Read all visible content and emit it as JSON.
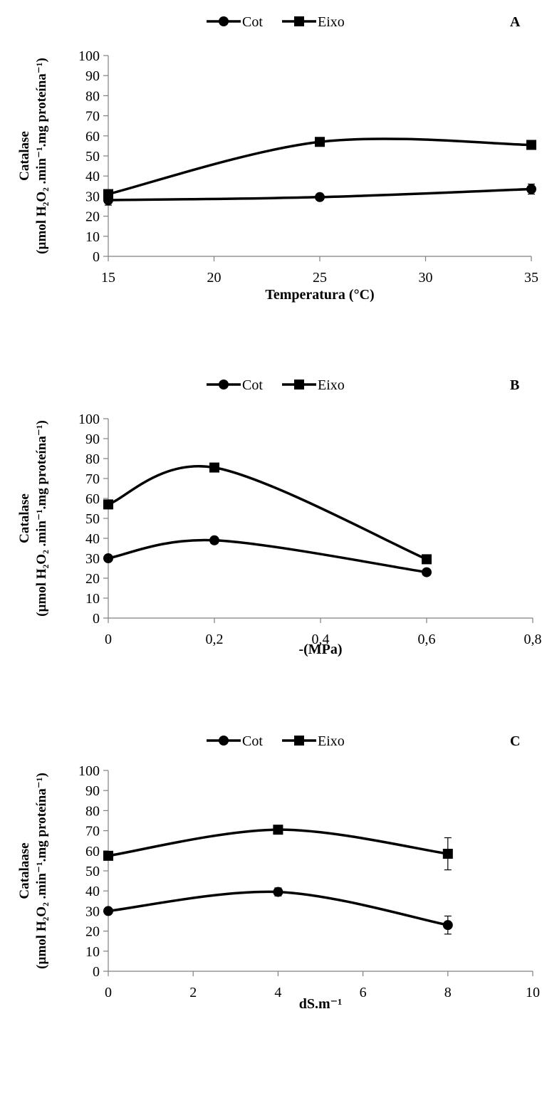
{
  "chart_data": [
    {
      "type": "line",
      "panel_label": "A",
      "xlabel": "Temperatura (°C)",
      "ylabel_line1": "Catalase",
      "ylabel_line2": "(µmol H₂O₂ .min⁻¹.mg proteína⁻¹)",
      "xlim": [
        15,
        35
      ],
      "xticks": [
        "15",
        "20",
        "25",
        "30",
        "35"
      ],
      "xtick_values": [
        15,
        20,
        25,
        30,
        35
      ],
      "ylim": [
        0,
        100
      ],
      "yticks": [
        0,
        10,
        20,
        30,
        40,
        50,
        60,
        70,
        80,
        90,
        100
      ],
      "legend": [
        "Cot",
        "Eixo"
      ],
      "series": [
        {
          "name": "Cot",
          "marker": "circle",
          "x": [
            15,
            25,
            35
          ],
          "y": [
            28,
            29.5,
            33.5
          ],
          "err": [
            2.5,
            1,
            2.5
          ]
        },
        {
          "name": "Eixo",
          "marker": "square",
          "x": [
            15,
            25,
            35
          ],
          "y": [
            31,
            57,
            55.5
          ],
          "err": [
            1,
            1,
            1
          ]
        }
      ]
    },
    {
      "type": "line",
      "panel_label": "B",
      "xlabel": "-(MPa)",
      "ylabel_line1": "Catalase",
      "ylabel_line2": "(µmol H₂O₂ .min⁻¹.mg proteína⁻¹)",
      "xlim": [
        0,
        0.8
      ],
      "xticks": [
        "0",
        "0,2",
        "0,4",
        "0,6",
        "0,8"
      ],
      "xtick_values": [
        0,
        0.2,
        0.4,
        0.6,
        0.8
      ],
      "ylim": [
        0,
        100
      ],
      "yticks": [
        0,
        10,
        20,
        30,
        40,
        50,
        60,
        70,
        80,
        90,
        100
      ],
      "legend": [
        "Cot",
        "Eixo"
      ],
      "series": [
        {
          "name": "Cot",
          "marker": "circle",
          "x": [
            0,
            0.2,
            0.6
          ],
          "y": [
            30,
            39,
            23
          ],
          "err": [
            1,
            0.5,
            0.5
          ]
        },
        {
          "name": "Eixo",
          "marker": "square",
          "x": [
            0,
            0.2,
            0.6
          ],
          "y": [
            57,
            75.5,
            29.5
          ],
          "err": [
            1,
            1,
            0.5
          ]
        }
      ]
    },
    {
      "type": "line",
      "panel_label": "C",
      "xlabel": "dS.m⁻¹",
      "ylabel_line1": "Catalaase",
      "ylabel_line2": "(µmol H₂O₂ .min⁻¹.mg proteína⁻¹)",
      "xlim": [
        0,
        10
      ],
      "xticks": [
        "0",
        "2",
        "4",
        "6",
        "8",
        "10"
      ],
      "xtick_values": [
        0,
        2,
        4,
        6,
        8,
        10
      ],
      "ylim": [
        0,
        100
      ],
      "yticks": [
        0,
        10,
        20,
        30,
        40,
        50,
        60,
        70,
        80,
        90,
        100
      ],
      "legend": [
        "Cot",
        "Eixo"
      ],
      "series": [
        {
          "name": "Cot",
          "marker": "circle",
          "x": [
            0,
            4,
            8
          ],
          "y": [
            30,
            39.5,
            23
          ],
          "err": [
            1,
            2,
            4.5
          ]
        },
        {
          "name": "Eixo",
          "marker": "square",
          "x": [
            0,
            4,
            8
          ],
          "y": [
            57.5,
            70.5,
            58.5
          ],
          "err": [
            1,
            1,
            8
          ]
        }
      ]
    }
  ]
}
